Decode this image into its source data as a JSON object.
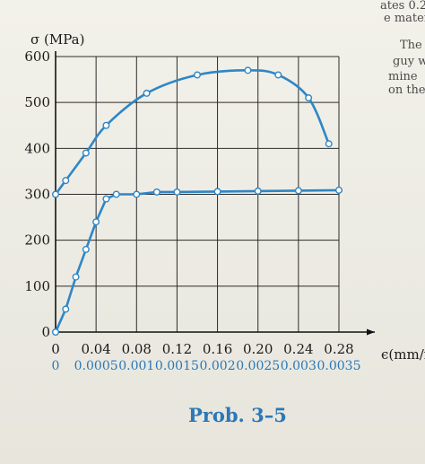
{
  "chart_data": {
    "type": "line",
    "y_axis_label": "σ (MPa)",
    "x_axis_label": "ϵ(mm/mm)",
    "ylim": [
      0,
      600
    ],
    "xlim": [
      0,
      0.28
    ],
    "y_ticks": [
      "0",
      "100",
      "200",
      "300",
      "400",
      "500",
      "600"
    ],
    "x_ticks_top": [
      "0",
      "0.04",
      "0.08",
      "0.12",
      "0.16",
      "0.20",
      "0.24",
      "0.28"
    ],
    "x_ticks_top_values": [
      0,
      0.04,
      0.08,
      0.12,
      0.16,
      0.2,
      0.24,
      0.28
    ],
    "x_ticks_bottom": [
      "0",
      "0.0005",
      "0.001",
      "0.0015",
      "0.002",
      "0.0025",
      "0.003",
      "0.0035"
    ],
    "x_ticks_bottom_values": [
      0,
      0.0005,
      0.001,
      0.0015,
      0.002,
      0.0025,
      0.003,
      0.0035
    ],
    "grid": true,
    "series": [
      {
        "scale": "top",
        "color": "#2f86c6",
        "x": [
          0,
          0.01,
          0.03,
          0.05,
          0.09,
          0.14,
          0.19,
          0.22,
          0.25,
          0.27
        ],
        "y": [
          300,
          330,
          390,
          450,
          520,
          560,
          570,
          560,
          510,
          410
        ]
      },
      {
        "scale": "bottom",
        "color": "#2f86c6",
        "x": [
          0,
          0.000125,
          0.00025,
          0.000375,
          0.0005,
          0.000625,
          0.00075,
          0.001,
          0.00125,
          0.0015,
          0.002,
          0.0025,
          0.003,
          0.0035
        ],
        "y": [
          0,
          50,
          120,
          180,
          240,
          290,
          300,
          300,
          305,
          305,
          306,
          307,
          308,
          309
        ]
      }
    ]
  },
  "caption": "Prob. 3–5",
  "background_text": {
    "top_right": [
      "ates 0.2",
      "e mater"
    ],
    "right": [
      "The",
      "guy w",
      "mine",
      "on the"
    ]
  }
}
